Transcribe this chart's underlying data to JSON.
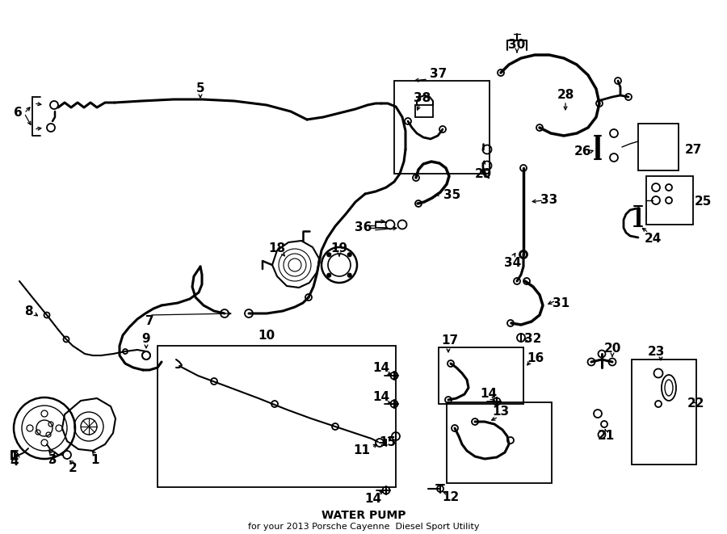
{
  "title": "WATER PUMP",
  "subtitle": "for your 2013 Porsche Cayenne  Diesel Sport Utility",
  "bg_color": "#ffffff",
  "lc": "#000000",
  "lw_hose": 2.0,
  "lw_thin": 1.2,
  "fs_label": 11,
  "fs_title": 10,
  "fs_sub": 8
}
